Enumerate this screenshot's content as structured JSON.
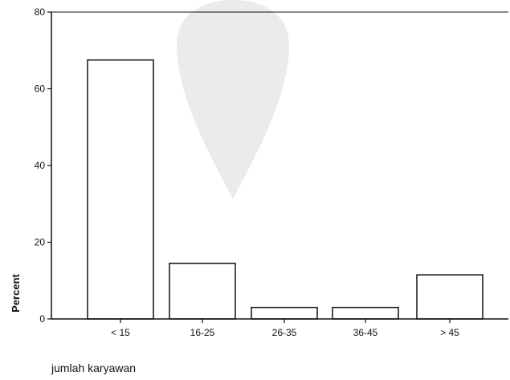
{
  "chart_data": {
    "type": "bar",
    "categories": [
      "< 15",
      "16-25",
      "26-35",
      "36-45",
      "> 45"
    ],
    "values": [
      67.5,
      14.5,
      3.0,
      3.0,
      11.5
    ],
    "xlabel": "jumlah karyawan",
    "ylabel": "Percent",
    "ylim": [
      0,
      80
    ],
    "yticks": [
      0,
      20,
      40,
      60,
      80
    ],
    "grid": false,
    "legend": "none",
    "colors": {
      "bar_fill": "#ffffff",
      "bar_stroke": "#111111",
      "axis": "#111111",
      "watermark": "#e6e6e6"
    }
  }
}
